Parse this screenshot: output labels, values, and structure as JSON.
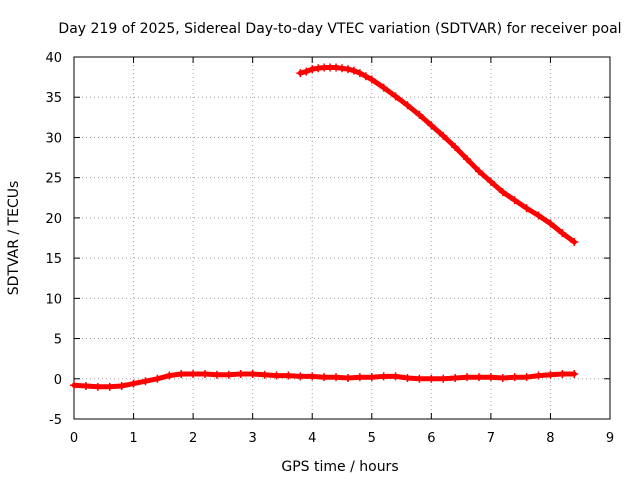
{
  "chart_data": {
    "type": "scatter",
    "title": "Day 219 of 2025, Sidereal Day-to-day VTEC variation (SDTVAR) for receiver poal",
    "xlabel": "GPS time / hours",
    "ylabel": "SDTVAR / TECUs",
    "xlim": [
      0,
      9
    ],
    "ylim": [
      -5,
      40
    ],
    "xticks": [
      "0",
      "1",
      "2",
      "3",
      "4",
      "5",
      "6",
      "7",
      "8",
      "9"
    ],
    "yticks": [
      "-5",
      "0",
      "5",
      "10",
      "15",
      "20",
      "25",
      "30",
      "35",
      "40"
    ],
    "grid": true,
    "series": [
      {
        "name": "SDTVAR",
        "color": "#ff0000",
        "marker": "plus",
        "x": [
          3.8,
          3.9,
          4.0,
          4.1,
          4.2,
          4.3,
          4.4,
          4.5,
          4.6,
          4.7,
          4.8,
          4.9,
          5.0,
          5.2,
          5.4,
          5.6,
          5.8,
          6.0,
          6.2,
          6.4,
          6.6,
          6.8,
          7.0,
          7.2,
          7.4,
          7.6,
          7.8,
          8.0,
          8.2,
          8.4
        ],
        "y": [
          38.0,
          38.2,
          38.5,
          38.6,
          38.7,
          38.7,
          38.7,
          38.6,
          38.5,
          38.3,
          38.0,
          37.6,
          37.2,
          36.2,
          35.1,
          34.0,
          32.8,
          31.5,
          30.2,
          28.8,
          27.3,
          25.8,
          24.5,
          23.2,
          22.2,
          21.2,
          20.3,
          19.3,
          18.1,
          17.0
        ]
      },
      {
        "name": "SDTVAR",
        "color": "#ff0000",
        "marker": "plus",
        "x": [
          0.0,
          0.2,
          0.4,
          0.6,
          0.8,
          1.0,
          1.2,
          1.4,
          1.6,
          1.8,
          2.0,
          2.2,
          2.4,
          2.6,
          2.8,
          3.0,
          3.2,
          3.4,
          3.6,
          3.8,
          4.0,
          4.2,
          4.4,
          4.6,
          4.8,
          5.0,
          5.2,
          5.4,
          5.6,
          5.8,
          6.0,
          6.2,
          6.4,
          6.6,
          6.8,
          7.0,
          7.2,
          7.4,
          7.6,
          7.8,
          8.0,
          8.2,
          8.4
        ],
        "y": [
          -0.8,
          -0.9,
          -1.0,
          -1.0,
          -0.9,
          -0.6,
          -0.3,
          0.0,
          0.4,
          0.6,
          0.6,
          0.6,
          0.5,
          0.5,
          0.6,
          0.6,
          0.5,
          0.4,
          0.4,
          0.3,
          0.3,
          0.2,
          0.2,
          0.1,
          0.2,
          0.2,
          0.3,
          0.3,
          0.1,
          0.0,
          0.0,
          0.0,
          0.1,
          0.2,
          0.2,
          0.2,
          0.1,
          0.2,
          0.2,
          0.4,
          0.5,
          0.6,
          0.6
        ]
      }
    ]
  }
}
